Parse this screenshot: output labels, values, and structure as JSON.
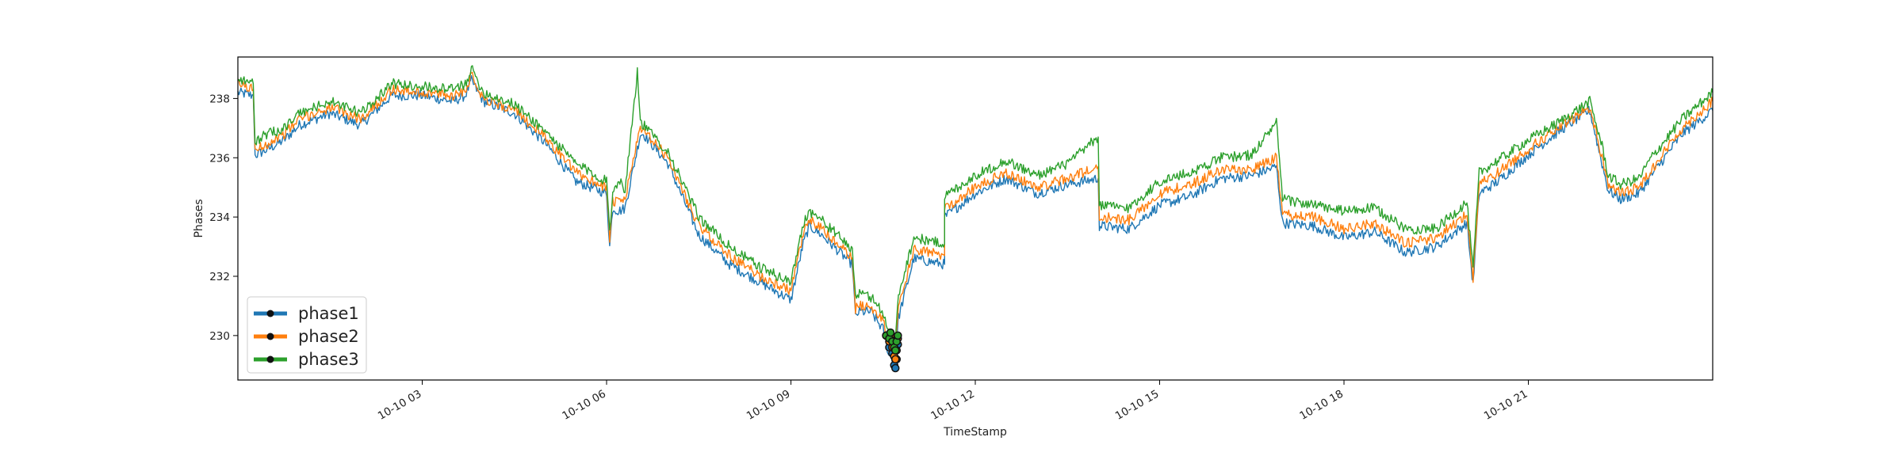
{
  "chart_data": {
    "type": "line",
    "title": "",
    "xlabel": "TimeStamp",
    "ylabel": "Phases",
    "xlim": [
      "10-10 00:00",
      "10-10 24:00"
    ],
    "ylim": [
      228.5,
      239.4
    ],
    "x_ticks": [
      {
        "hour": 3,
        "label": "10-10 03"
      },
      {
        "hour": 6,
        "label": "10-10 06"
      },
      {
        "hour": 9,
        "label": "10-10 09"
      },
      {
        "hour": 12,
        "label": "10-10 12"
      },
      {
        "hour": 15,
        "label": "10-10 15"
      },
      {
        "hour": 18,
        "label": "10-10 18"
      },
      {
        "hour": 21,
        "label": "10-10 21"
      }
    ],
    "y_ticks": [
      230,
      232,
      234,
      236,
      238
    ],
    "grid": false,
    "legend_position": "lower-left",
    "x_hour_of_day": [
      0,
      0.25,
      0.28,
      0.3,
      0.5,
      0.75,
      1,
      1.5,
      2,
      2.5,
      3,
      3.5,
      3.7,
      3.8,
      4,
      4.5,
      5,
      5.5,
      6,
      6.05,
      6.1,
      6.2,
      6.3,
      6.5,
      6.55,
      6.6,
      7,
      7.5,
      8,
      8.5,
      9,
      9.2,
      9.3,
      9.5,
      10,
      10.05,
      10.1,
      10.3,
      10.5,
      10.6,
      10.7,
      10.75,
      11,
      11.5,
      11.5,
      12,
      12.5,
      13,
      13.5,
      14,
      14.02,
      14.5,
      15,
      15.5,
      16,
      16.5,
      16.9,
      17,
      17.5,
      18,
      18.5,
      19,
      19.5,
      20,
      20.1,
      20.2,
      20.5,
      21,
      21.5,
      22,
      22.2,
      22.3,
      22.5,
      22.8,
      23,
      23.5,
      24
    ],
    "series": [
      {
        "name": "phase1",
        "color": "#1f77b4",
        "values": [
          238.2,
          238.1,
          236.1,
          236.1,
          236.3,
          236.6,
          237.1,
          237.5,
          237.1,
          238.1,
          238.1,
          237.9,
          238.1,
          238.6,
          237.9,
          237.5,
          236.5,
          235.2,
          234.8,
          233.0,
          234.3,
          234.2,
          234.3,
          236.3,
          236.8,
          236.8,
          235.8,
          233.4,
          232.4,
          231.8,
          231.2,
          233.1,
          233.7,
          233.4,
          232.4,
          230.6,
          230.8,
          230.8,
          230.2,
          229.3,
          229.2,
          230.6,
          232.6,
          232.4,
          234.0,
          234.8,
          235.3,
          234.8,
          235.1,
          235.3,
          233.7,
          233.6,
          234.4,
          234.7,
          235.3,
          235.4,
          235.7,
          233.8,
          233.7,
          233.3,
          233.5,
          232.8,
          233.0,
          233.8,
          231.7,
          234.8,
          235.2,
          236.1,
          236.9,
          237.6,
          235.8,
          234.9,
          234.6,
          234.8,
          235.4,
          236.8,
          237.6
        ]
      },
      {
        "name": "phase2",
        "color": "#ff7f0e",
        "values": [
          238.5,
          238.3,
          236.3,
          236.3,
          236.5,
          236.8,
          237.3,
          237.7,
          237.3,
          238.3,
          238.2,
          238.1,
          238.3,
          238.8,
          238.0,
          237.6,
          236.7,
          235.5,
          235.0,
          233.3,
          234.5,
          234.5,
          234.6,
          236.6,
          236.9,
          236.9,
          236.0,
          233.7,
          232.7,
          232.0,
          231.5,
          233.4,
          233.9,
          233.6,
          232.6,
          230.9,
          231.0,
          231.0,
          230.5,
          229.7,
          229.5,
          230.9,
          232.9,
          232.7,
          234.3,
          235.0,
          235.5,
          235.0,
          235.3,
          235.7,
          234.0,
          233.9,
          234.8,
          235.1,
          235.6,
          235.6,
          236.0,
          234.1,
          234.0,
          233.6,
          233.8,
          233.1,
          233.3,
          234.1,
          231.9,
          235.1,
          235.5,
          236.3,
          237.0,
          237.7,
          236.0,
          235.1,
          234.8,
          235.0,
          235.6,
          237.0,
          237.9
        ]
      },
      {
        "name": "phase3",
        "color": "#2ca02c",
        "values": [
          238.7,
          238.5,
          236.5,
          236.6,
          236.8,
          237.0,
          237.5,
          237.9,
          237.5,
          238.5,
          238.4,
          238.3,
          238.5,
          239.0,
          238.2,
          237.8,
          236.9,
          235.8,
          235.2,
          233.6,
          234.8,
          235.3,
          234.9,
          238.9,
          237.2,
          237.1,
          236.2,
          234.0,
          233.0,
          232.3,
          231.8,
          233.8,
          234.2,
          233.9,
          232.9,
          231.3,
          231.4,
          231.3,
          230.8,
          230.0,
          229.8,
          231.4,
          233.3,
          233.1,
          234.7,
          235.4,
          235.9,
          235.4,
          235.8,
          236.7,
          234.4,
          234.3,
          235.2,
          235.5,
          236.0,
          236.1,
          237.2,
          234.6,
          234.4,
          234.2,
          234.3,
          233.6,
          233.6,
          234.5,
          232.2,
          235.5,
          235.9,
          236.6,
          237.2,
          237.9,
          236.4,
          235.4,
          235.1,
          235.3,
          236.0,
          237.3,
          238.2
        ]
      }
    ],
    "marker_points": {
      "x_hour_of_day": [
        10.55,
        10.6,
        10.62,
        10.65,
        10.68,
        10.7,
        10.72,
        10.74
      ],
      "phase1": [
        230.0,
        229.6,
        229.9,
        229.4,
        229.0,
        228.9,
        229.2,
        229.7
      ],
      "phase2": [
        230.0,
        229.8,
        230.0,
        229.6,
        229.3,
        229.2,
        229.5,
        229.9
      ],
      "phase3": [
        230.0,
        229.9,
        230.1,
        229.8,
        229.6,
        229.5,
        229.8,
        230.0
      ]
    },
    "legend": [
      {
        "label": "phase1",
        "color": "#1f77b4"
      },
      {
        "label": "phase2",
        "color": "#ff7f0e"
      },
      {
        "label": "phase3",
        "color": "#2ca02c"
      }
    ]
  }
}
